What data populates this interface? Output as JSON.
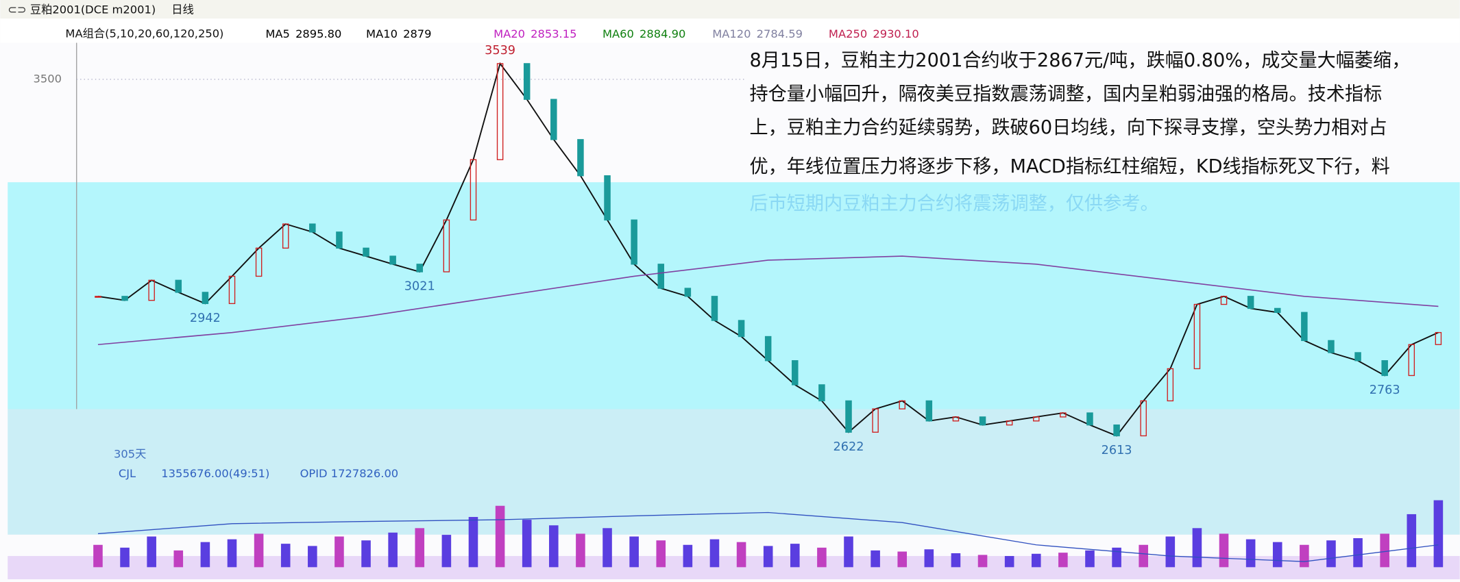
{
  "chart_data": {
    "type": "candlestick-screen",
    "title": "豆粕2001(DCE m2001)",
    "period": "日线",
    "ma_group": "MA组合(5,10,20,60,120,250)",
    "ma_legend": [
      {
        "name": "MA5",
        "value": "2895.80",
        "color": "#000000"
      },
      {
        "name": "MA10",
        "value": "2879",
        "color": "#000000"
      },
      {
        "name": "MA20",
        "value": "2853.15",
        "color": "#c020c0"
      },
      {
        "name": "MA60",
        "value": "2884.90",
        "color": "#108010"
      },
      {
        "name": "MA120",
        "value": "2784.59",
        "color": "#8080a0"
      },
      {
        "name": "MA250",
        "value": "2930.10",
        "color": "#c02050"
      }
    ],
    "ylim": [
      2580,
      3570
    ],
    "yticks": [
      3500
    ],
    "grid": true,
    "series": [
      {
        "color": "#101010",
        "values": [
          2960,
          2950,
          3000,
          2970,
          2942,
          3010,
          3080,
          3140,
          3120,
          3080,
          3060,
          3040,
          3021,
          3150,
          3300,
          3539,
          3450,
          3350,
          3260,
          3150,
          3040,
          2980,
          2960,
          2900,
          2860,
          2800,
          2740,
          2700,
          2622,
          2680,
          2700,
          2650,
          2660,
          2640,
          2650,
          2660,
          2670,
          2640,
          2613,
          2700,
          2780,
          2940,
          2960,
          2930,
          2920,
          2850,
          2820,
          2800,
          2763,
          2840,
          2870
        ]
      },
      {
        "color": "#8040a0",
        "values": [
          2840,
          2870,
          2910,
          2960,
          3010,
          3050,
          3060,
          3040,
          3000,
          2960,
          2935
        ]
      }
    ],
    "annotations": [
      3539,
      2942,
      3021,
      2622,
      2613,
      2763
    ],
    "commentary": [
      "8月15日，豆粕主力2001合约收于2867元/吨，跌幅0.80%，成交量大幅萎缩，",
      "持仓量小幅回升，隔夜美豆指数震荡调整，国内呈粕弱油强的格局。技术指标",
      "上，豆粕主力合约延续弱势，跌破60日均线，向下探寻支撑，空头势力相对占",
      "优，年线位置压力将逐步下移，MACD指标红柱缩短，KD线指标死叉下行，料",
      "后市短期内豆粕主力合约将震荡调整，仅供参考。"
    ],
    "volume_pane": {
      "days": "305天",
      "indicator": "CJL",
      "volume_text": "1355676.00(49:51)",
      "oi_text": "OPID 1727826.00",
      "ylim": [
        0,
        150
      ],
      "volume": {
        "color": "#5a3ee0",
        "values": [
          40,
          35,
          55,
          30,
          45,
          50,
          60,
          42,
          38,
          55,
          48,
          62,
          70,
          58,
          90,
          110,
          85,
          75,
          60,
          70,
          55,
          48,
          40,
          50,
          45,
          38,
          42,
          35,
          55,
          30,
          28,
          32,
          25,
          22,
          20,
          24,
          26,
          30,
          35,
          40,
          55,
          70,
          60,
          50,
          45,
          40,
          48,
          52,
          60,
          95,
          120
        ]
      },
      "open_interest": {
        "color": "#3050c0",
        "values": [
          60,
          78,
          82,
          85,
          92,
          98,
          80,
          40,
          20,
          10,
          40
        ]
      }
    }
  }
}
